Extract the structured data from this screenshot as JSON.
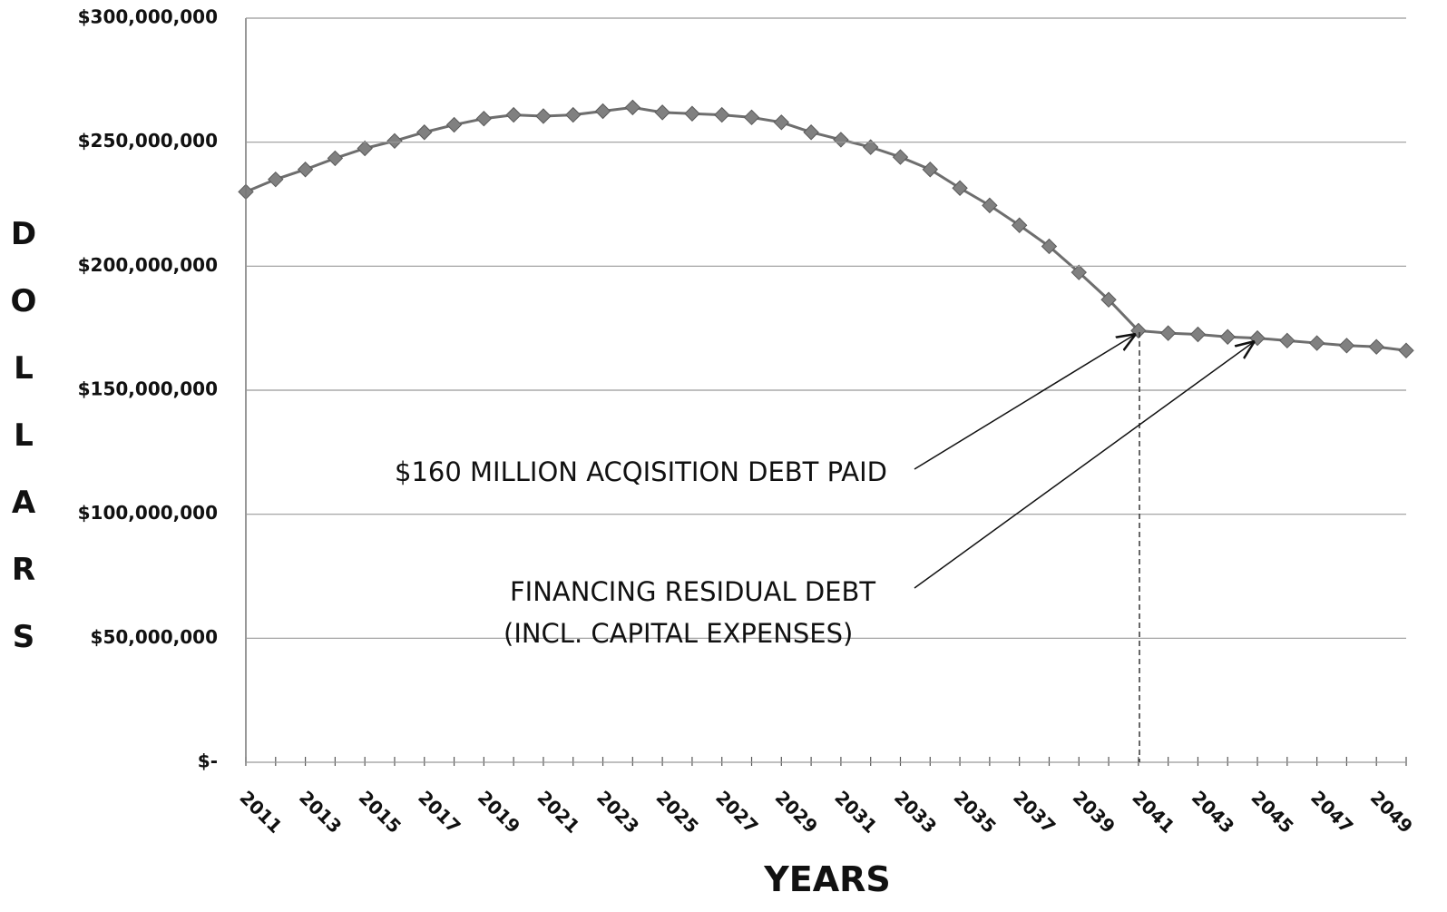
{
  "chart_data": {
    "type": "line",
    "ylabel": "DOLLARS",
    "xlabel": "YEARS",
    "categories": [
      "2011",
      null,
      "2013",
      null,
      "2015",
      null,
      "2017",
      null,
      "2019",
      null,
      "2021",
      null,
      "2023",
      null,
      "2025",
      null,
      "2027",
      null,
      "2029",
      null,
      "2031",
      null,
      "2033",
      null,
      "2035",
      null,
      "2037",
      null,
      "2039",
      null,
      "2041",
      null,
      "2043",
      null,
      "2045",
      null,
      "2047",
      null,
      "2049",
      null
    ],
    "series": [
      {
        "color": "#808080",
        "values": [
          230000000,
          235000000,
          239000000,
          243500000,
          247500000,
          250500000,
          254000000,
          257000000,
          259500000,
          261000000,
          260500000,
          261000000,
          262500000,
          264000000,
          262000000,
          261500000,
          261000000,
          260000000,
          258000000,
          254000000,
          251000000,
          248000000,
          244000000,
          239000000,
          231500000,
          224500000,
          216500000,
          208000000,
          197500000,
          186500000,
          174000000,
          173000000,
          172500000,
          171500000,
          171000000,
          170000000,
          169000000,
          168000000,
          167500000,
          166000000
        ]
      }
    ],
    "ylim": [
      0,
      300000000
    ],
    "yticks": [
      {
        "value": 0,
        "label": "$-"
      },
      {
        "value": 50000000,
        "label": "$50,000,000"
      },
      {
        "value": 100000000,
        "label": "$100,000,000"
      },
      {
        "value": 150000000,
        "label": "$150,000,000"
      },
      {
        "value": 200000000,
        "label": "$200,000,000"
      },
      {
        "value": 250000000,
        "label": "$250,000,000"
      },
      {
        "value": 300000000,
        "label": "$300,000,000"
      }
    ],
    "grid": true,
    "annotations": [
      "$160 MILLION ACQISITION DEBT PAID",
      "FINANCING RESIDUAL DEBT",
      "(INCL. CAPITAL EXPENSES)"
    ]
  }
}
